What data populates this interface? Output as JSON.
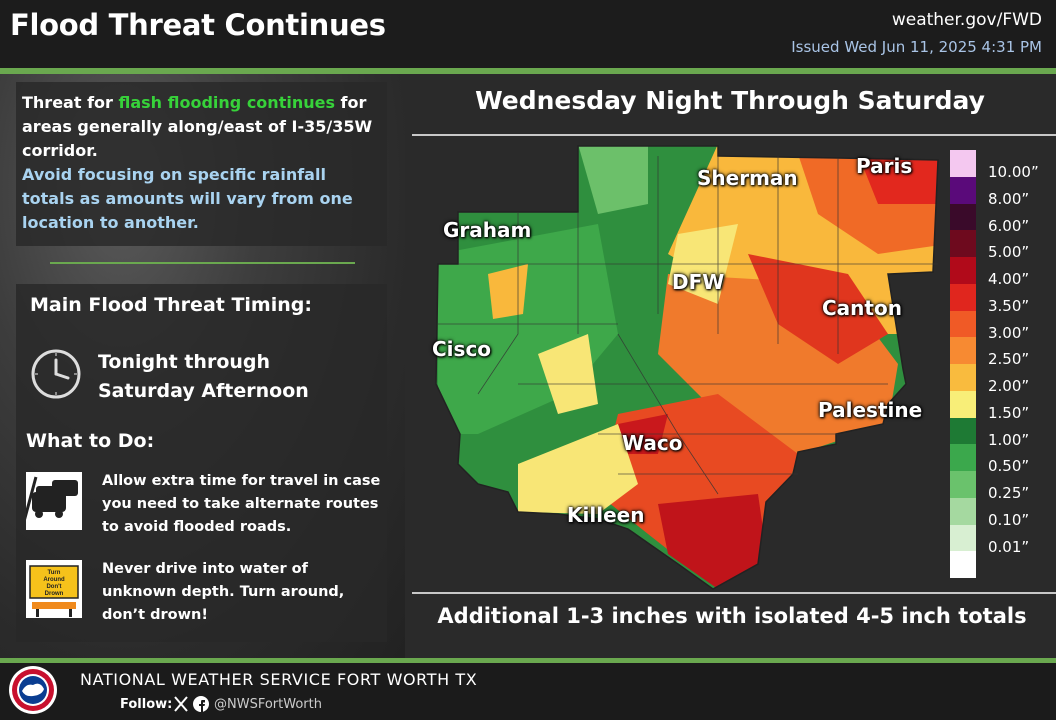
{
  "header": {
    "title": "Flood Threat Continues",
    "site": "weather.gov/FWD",
    "issued": "Issued Wed Jun 11, 2025 4:31 PM"
  },
  "intro": {
    "line_a": "Threat for ",
    "line_highlight": "flash flooding continues",
    "line_b": " for areas generally along/east of I-35/35W corridor.",
    "advice": "Avoid focusing on specific rainfall totals as amounts will vary from one location to another."
  },
  "timing": {
    "heading": "Main Flood Threat Timing:",
    "line1": "Tonight through",
    "line2": "Saturday Afternoon",
    "icon": "clock-icon"
  },
  "what_to_do": {
    "heading": "What to Do:",
    "tip1": "Allow extra time for travel in case you need to take alternate routes to avoid flooded roads.",
    "tip1_icon": "traffic-cars-icon",
    "tip2": "Never drive into water of unknown depth. Turn around, don’t drown!",
    "tip2_icon": "turn-around-sign-icon",
    "sign_line1": "Turn",
    "sign_line2": "Around",
    "sign_line3": "Don't",
    "sign_line4": "Drown"
  },
  "map": {
    "title": "Wednesday Night Through Saturday",
    "summary": "Additional 1-3 inches with isolated 4-5 inch totals",
    "cities": [
      "Sherman",
      "Paris",
      "Graham",
      "DFW",
      "Canton",
      "Cisco",
      "Palestine",
      "Waco",
      "Killeen"
    ]
  },
  "legend": {
    "labels": [
      "10.00”",
      "8.00”",
      "6.00”",
      "5.00”",
      "4.00”",
      "3.50”",
      "3.00”",
      "2.50”",
      "2.00”",
      "1.50”",
      "1.00”",
      "0.50”",
      "0.25”",
      "0.10”",
      "0.01”"
    ],
    "colors": [
      "#f4c8f0",
      "#5a0a7a",
      "#3a0a2a",
      "#6e0a1e",
      "#b10a1a",
      "#e0261e",
      "#f05a26",
      "#f78a32",
      "#f9bb3e",
      "#f8ee78",
      "#1e7a34",
      "#3ba84c",
      "#6ac26c",
      "#a5d9a0",
      "#d8efd2",
      "#ffffff"
    ]
  },
  "footer": {
    "office": "NATIONAL WEATHER SERVICE FORT WORTH TX",
    "follow": "Follow:",
    "handle": "@NWSFortWorth",
    "logo_icon": "nws-logo-icon"
  }
}
